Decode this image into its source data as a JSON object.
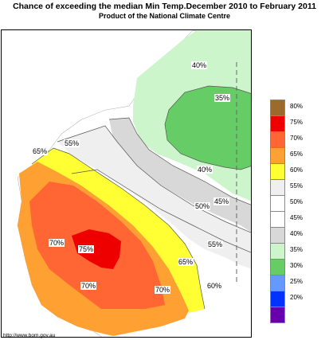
{
  "title": "Chance of exceeding the median Min Temp.December 2010 to February 2011",
  "subtitle": "Product of the National Climate Centre",
  "credit": "http://www.bom.gov.au",
  "contour_labels": [
    "40%",
    "35%",
    "55%",
    "65%",
    "40%",
    "45%",
    "50%",
    "55%",
    "70%",
    "75%",
    "65%",
    "70%",
    "70%",
    "60%"
  ],
  "legend": [
    {
      "label": "80%",
      "color": "#9C6A2A"
    },
    {
      "label": "75%",
      "color": "#EE0000"
    },
    {
      "label": "70%",
      "color": "#FF6633"
    },
    {
      "label": "65%",
      "color": "#FFA033"
    },
    {
      "label": "60%",
      "color": "#FFFF33"
    },
    {
      "label": "55%",
      "color": "#EFEFEF"
    },
    {
      "label": "50%",
      "color": "#FFFFFF"
    },
    {
      "label": "45%",
      "color": "#FFFFFF"
    },
    {
      "label": "40%",
      "color": "#D8D8D8"
    },
    {
      "label": "35%",
      "color": "#CCF5CC"
    },
    {
      "label": "30%",
      "color": "#66CC66"
    },
    {
      "label": "25%",
      "color": "#6699FF"
    },
    {
      "label": "20%",
      "color": "#0033FF"
    },
    {
      "label": "",
      "color": "#6600AA"
    }
  ]
}
